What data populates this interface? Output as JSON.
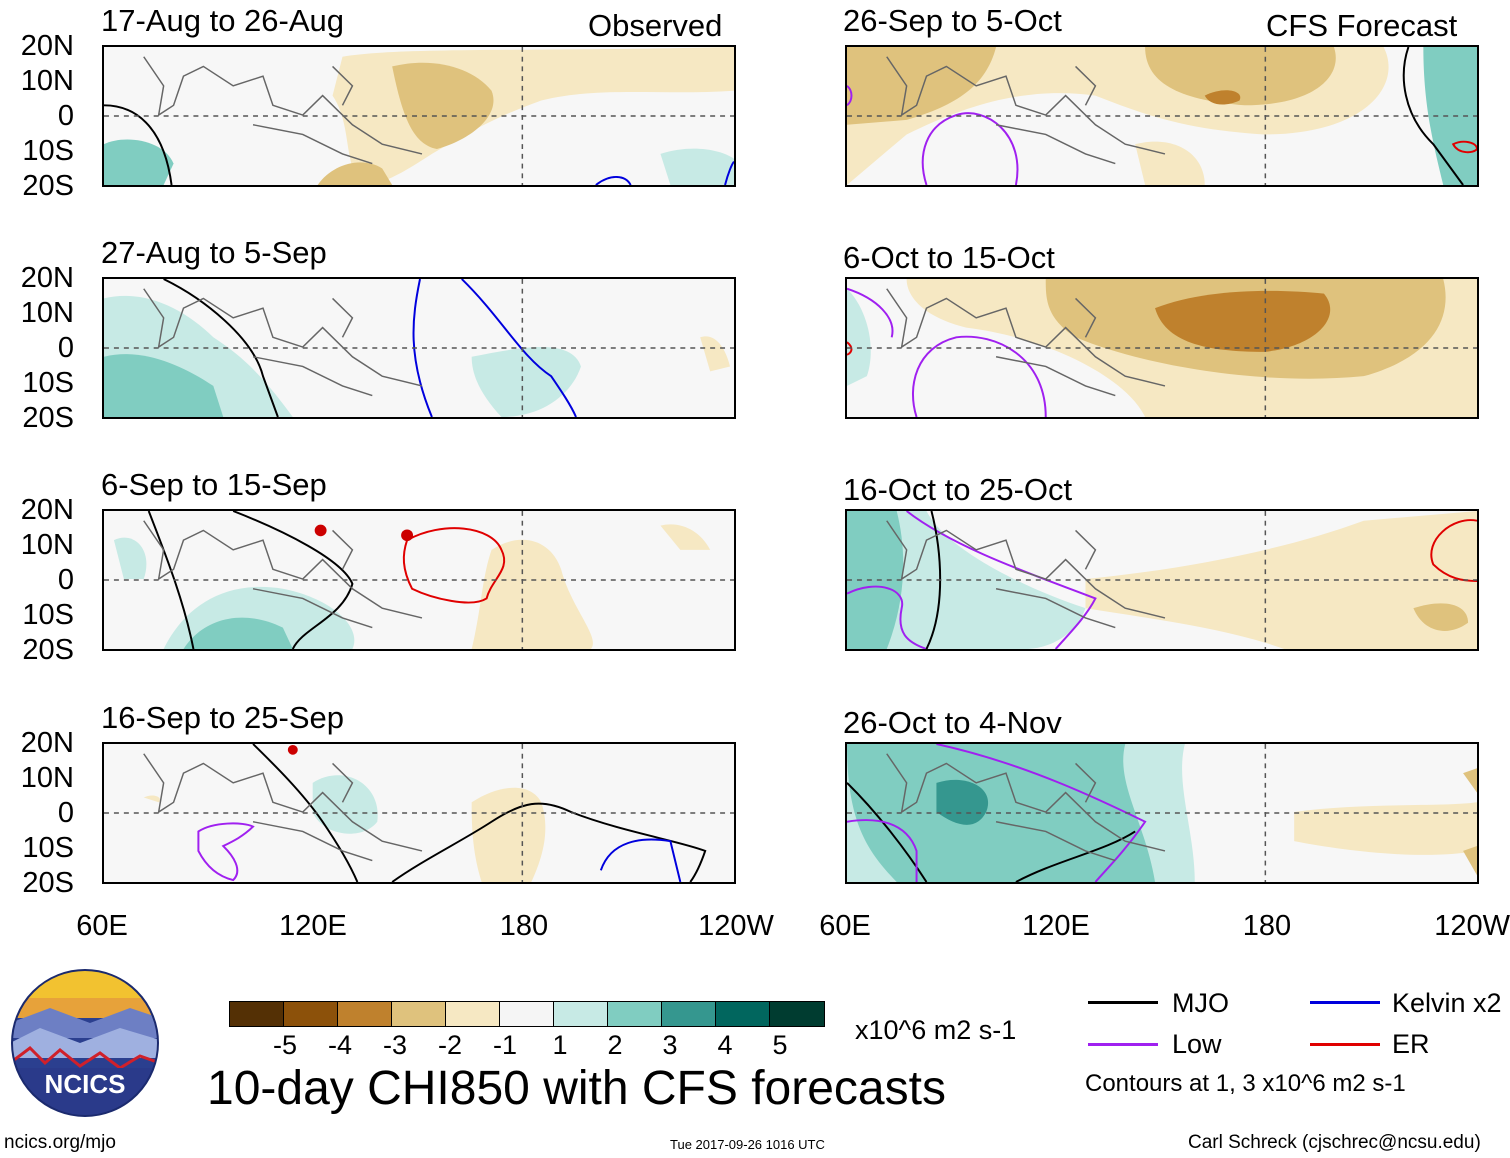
{
  "panels": [
    {
      "date_range": "17-Aug to 26-Aug",
      "corner_label": "Observed"
    },
    {
      "date_range": "27-Aug to 5-Sep",
      "corner_label": ""
    },
    {
      "date_range": "6-Sep to 15-Sep",
      "corner_label": ""
    },
    {
      "date_range": "16-Sep to 25-Sep",
      "corner_label": ""
    },
    {
      "date_range": "26-Sep to 5-Oct",
      "corner_label": "CFS Forecast"
    },
    {
      "date_range": "6-Oct to 15-Oct",
      "corner_label": ""
    },
    {
      "date_range": "16-Oct to 25-Oct",
      "corner_label": ""
    },
    {
      "date_range": "26-Oct to 4-Nov",
      "corner_label": ""
    }
  ],
  "lat_labels": [
    "20N",
    "10N",
    "0",
    "10S",
    "20S"
  ],
  "lon_labels": [
    "60E",
    "120E",
    "180",
    "120W"
  ],
  "colorbar": {
    "colors": [
      "#543005",
      "#8c510a",
      "#bf812d",
      "#dfc27d",
      "#f6e8c3",
      "#f5f5f5",
      "#c7eae5",
      "#80cdc1",
      "#35978f",
      "#01665e",
      "#003c30"
    ],
    "ticks": [
      "-5",
      "-4",
      "-3",
      "-2",
      "-1",
      "1",
      "2",
      "3",
      "4",
      "5"
    ],
    "units": "x10^6 m2 s-1"
  },
  "title": "10-day CHI850 with CFS forecasts",
  "legend": {
    "items": [
      {
        "label": "MJO",
        "color": "#000000"
      },
      {
        "label": "Kelvin x2",
        "color": "#0000dd"
      },
      {
        "label": "Low",
        "color": "#a020f0"
      },
      {
        "label": "ER",
        "color": "#e00000"
      }
    ],
    "note": "Contours at 1, 3 x10^6 m2 s-1"
  },
  "logo_text": "NCICS",
  "footer": {
    "left": "ncics.org/mjo",
    "center": "Tue 2017-09-26 1016 UTC",
    "right": "Carl Schreck (cjschrec@ncsu.edu)"
  }
}
